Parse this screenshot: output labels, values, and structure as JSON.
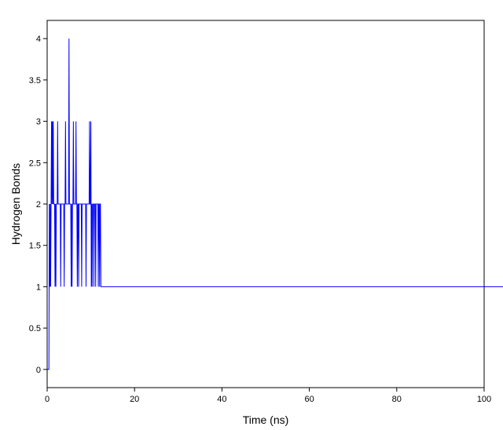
{
  "chart_data": {
    "type": "line",
    "title": "",
    "xlabel": "Time (ns)",
    "ylabel": "Hydrogen Bonds",
    "xlim": [
      0,
      100
    ],
    "ylim": [
      -0.22,
      4.22
    ],
    "x_ticks": [
      "0",
      "20",
      "40",
      "60",
      "80",
      "100"
    ],
    "y_ticks": [
      "0",
      "0.5",
      "1",
      "1.5",
      "2",
      "2.5",
      "3",
      "3.5",
      "4"
    ],
    "grid": false,
    "legend": "none",
    "line_color": "#0000ff",
    "sampling_interval_ns": 0.1,
    "series": [
      {
        "x_start": 0,
        "x_step": 0.1,
        "values": [
          0,
          0,
          0,
          0,
          0,
          2,
          1,
          2,
          1,
          2,
          3,
          2,
          3,
          2,
          3,
          2,
          2,
          2,
          1,
          2,
          1,
          2,
          2,
          2,
          3,
          2,
          2,
          2,
          2,
          2,
          2,
          1,
          2,
          2,
          2,
          2,
          2,
          2,
          2,
          1,
          2,
          2,
          3,
          2,
          2,
          2,
          2,
          2,
          2,
          2,
          4,
          2,
          2,
          2,
          2,
          1,
          2,
          1,
          2,
          2,
          3,
          2,
          2,
          2,
          2,
          2,
          3,
          2,
          2,
          1,
          2,
          2,
          1,
          2,
          2,
          2,
          2,
          2,
          2,
          1,
          2,
          2,
          2,
          2,
          2,
          2,
          2,
          2,
          2,
          1,
          2,
          2,
          2,
          2,
          2,
          2,
          2,
          3,
          2,
          2,
          3,
          1,
          2,
          1,
          2,
          2,
          2,
          1,
          2,
          2,
          2,
          1,
          2,
          2,
          2,
          2,
          2,
          1,
          2,
          2,
          1,
          2,
          2,
          1,
          1,
          1,
          1,
          1,
          1,
          1,
          1,
          1,
          1,
          1,
          1,
          1,
          1,
          1,
          1,
          1,
          1,
          1,
          1,
          1,
          1,
          1,
          1,
          1,
          1,
          1,
          1,
          1,
          1,
          1,
          1,
          1,
          1,
          1,
          1,
          1,
          1,
          1,
          1,
          1,
          1,
          1,
          1,
          1,
          1,
          1,
          1,
          1,
          1,
          1,
          1,
          1,
          1,
          1,
          1,
          1,
          1,
          1,
          1,
          1,
          1,
          1,
          1,
          1,
          1,
          1,
          1,
          1,
          1,
          1,
          1,
          1,
          1,
          1,
          1,
          1,
          1,
          1,
          1,
          1,
          1,
          1,
          1,
          1,
          1,
          1,
          1,
          1,
          1,
          1,
          1,
          1,
          1,
          1,
          1,
          1,
          1,
          1,
          1,
          1,
          1,
          1,
          1,
          1,
          1,
          1,
          1,
          1,
          1,
          1,
          1,
          1,
          1,
          1,
          1,
          1,
          1,
          1,
          1,
          1,
          1,
          1,
          1,
          1,
          1,
          1,
          1,
          1,
          1,
          1,
          1,
          1,
          1,
          1,
          1,
          1,
          1,
          1,
          1,
          1,
          1,
          1,
          1,
          1,
          1,
          1,
          1,
          1,
          1,
          1,
          1,
          1,
          1,
          1,
          1,
          1,
          1,
          1,
          1,
          1,
          1,
          1,
          1,
          1,
          1,
          1,
          1,
          1,
          1,
          1,
          1,
          1,
          1,
          1,
          1,
          1,
          1,
          1,
          1,
          1,
          1,
          1,
          1,
          1,
          1,
          1,
          1,
          1,
          1,
          1,
          1,
          1,
          1,
          1,
          1,
          1,
          1,
          1,
          1,
          1,
          1,
          1,
          1,
          1,
          1,
          1,
          1,
          1,
          1,
          1,
          1,
          1,
          1,
          1,
          1,
          1,
          1,
          1,
          1,
          1,
          1,
          1,
          1,
          1,
          1,
          1,
          1,
          1,
          1,
          1,
          1,
          1,
          1,
          1,
          1,
          1,
          1,
          1,
          1,
          1,
          1,
          1,
          1,
          1,
          1,
          1,
          1,
          1,
          1,
          1,
          1,
          1,
          1,
          1,
          1,
          1,
          1,
          1,
          1,
          1,
          1,
          1,
          1,
          1,
          1,
          1,
          1,
          1,
          1,
          1,
          1,
          1,
          1,
          1,
          1,
          1,
          1,
          1,
          1,
          1,
          1,
          1,
          1,
          1,
          1,
          1,
          1,
          1,
          1,
          1,
          1,
          1,
          1,
          1,
          1,
          1,
          1,
          1,
          1,
          1,
          1,
          1,
          1,
          1,
          1,
          1,
          1,
          1,
          1,
          1,
          1,
          1,
          1,
          1,
          1,
          1,
          1,
          1,
          1,
          1,
          1,
          1,
          1,
          1,
          1,
          1,
          1,
          1,
          1,
          1,
          1,
          1,
          1,
          1,
          1,
          1,
          1,
          1,
          1,
          1,
          1,
          1,
          1,
          1,
          1,
          1,
          1,
          1,
          1,
          1,
          1,
          1,
          1,
          1,
          1,
          1,
          1,
          1,
          1,
          1,
          1,
          1,
          1,
          1,
          1,
          1,
          1,
          1,
          1,
          1,
          1,
          1,
          1,
          1,
          1,
          1,
          1,
          1,
          1,
          1,
          1,
          1,
          1,
          1,
          1,
          1,
          1,
          1,
          1,
          1,
          1,
          1,
          1,
          1,
          1,
          1,
          1,
          1,
          1,
          1,
          1,
          1,
          1,
          1,
          1,
          1,
          1,
          1,
          1,
          1,
          1,
          1,
          1,
          1,
          1,
          1,
          1,
          1,
          1,
          1,
          1,
          1,
          1,
          1,
          1,
          1,
          1,
          1,
          1,
          1,
          1,
          1,
          1,
          1,
          1,
          1,
          1,
          1,
          1,
          1,
          1,
          1,
          1,
          1,
          1,
          1,
          1,
          1,
          1,
          1,
          1,
          1,
          1,
          1,
          1,
          1,
          1,
          1,
          1,
          1,
          1,
          1,
          1,
          1,
          1,
          1,
          1,
          1,
          1,
          1,
          1,
          1,
          1,
          1,
          1,
          1,
          1,
          1,
          1,
          1,
          1,
          1,
          1,
          1,
          1,
          1,
          1,
          1,
          1,
          1,
          1,
          1,
          1,
          1,
          1,
          1,
          1,
          1,
          1,
          1,
          1,
          1,
          1,
          1,
          1,
          1,
          1,
          1,
          1,
          1,
          1,
          1,
          1,
          1,
          1,
          1,
          1,
          1,
          1,
          1,
          1,
          1,
          1,
          1,
          1,
          1,
          1,
          1,
          1,
          1,
          1,
          1,
          1,
          1,
          1,
          1,
          1,
          1,
          1,
          1,
          1,
          1,
          1,
          1,
          1,
          1,
          1,
          1,
          1,
          1,
          1,
          1,
          1,
          1,
          1,
          1,
          1,
          1,
          1,
          1,
          1,
          1,
          1,
          1,
          1,
          1,
          1,
          1,
          1,
          1,
          1,
          1,
          1,
          1,
          1,
          1,
          1,
          1,
          1,
          1,
          1,
          1,
          1,
          1,
          1,
          1,
          1,
          1,
          1,
          1,
          1,
          1,
          1,
          1,
          1,
          1,
          1,
          1,
          1,
          1,
          1,
          1,
          1,
          1,
          1,
          1,
          1,
          1,
          1,
          1,
          1,
          1,
          1,
          1,
          1,
          1,
          1,
          1,
          1,
          1,
          1,
          1,
          1,
          1,
          1,
          1,
          1,
          1,
          1,
          1,
          1,
          1,
          1,
          1,
          1,
          1,
          1,
          1,
          1,
          1,
          1,
          1,
          1,
          1,
          1,
          1,
          1,
          1,
          1,
          1,
          1,
          1,
          1,
          1,
          1,
          1,
          1,
          1,
          1,
          1,
          1,
          1,
          1,
          1,
          1,
          1,
          1,
          1,
          1,
          1,
          1,
          1,
          1,
          1,
          1,
          1,
          1,
          1,
          1,
          1,
          1,
          1,
          1,
          1,
          1,
          1,
          1,
          1,
          1,
          1,
          1,
          1,
          1,
          1,
          1,
          1,
          1,
          1,
          1,
          1,
          1,
          1,
          1,
          1,
          1,
          1,
          1,
          1,
          1,
          1,
          1,
          1,
          1,
          1,
          1,
          1,
          1,
          1,
          1,
          1,
          1,
          1,
          1,
          1,
          1,
          1,
          1,
          1,
          1,
          1,
          1,
          1,
          1,
          1,
          1,
          1,
          1,
          1,
          1,
          1,
          1,
          1,
          1,
          1,
          1,
          1,
          1,
          1,
          1,
          1,
          1,
          1,
          1,
          1,
          1,
          1,
          1,
          1,
          1,
          1,
          1,
          1,
          1,
          1,
          1,
          1,
          1,
          1,
          1,
          1,
          1,
          1,
          1,
          1,
          1,
          1,
          1,
          1,
          1,
          1,
          1,
          1,
          1,
          1,
          1,
          1,
          1,
          1,
          1,
          1,
          1,
          1,
          1,
          1,
          1,
          1,
          1,
          1,
          1,
          1,
          1,
          1,
          1,
          1,
          1,
          1,
          1,
          1,
          1,
          1,
          1,
          1,
          1,
          1,
          1,
          1,
          1,
          1,
          1,
          1,
          1,
          1,
          1,
          1,
          1,
          1,
          1,
          1,
          1,
          1,
          1,
          1,
          1,
          1,
          1,
          1,
          1,
          1,
          1,
          1,
          1,
          1,
          1,
          1,
          1,
          1,
          1,
          1,
          1,
          1,
          1,
          1,
          1,
          1,
          1,
          1,
          1,
          1,
          1,
          1,
          1,
          1,
          1,
          1,
          1,
          1,
          1,
          1,
          1,
          1,
          1,
          1,
          1,
          1,
          1,
          1,
          1,
          1,
          1,
          1,
          1,
          1,
          1,
          1,
          1,
          1,
          1,
          1,
          1,
          1,
          1,
          1,
          1,
          1,
          1,
          1,
          1,
          1,
          1,
          1,
          1,
          1,
          1,
          1,
          1,
          1,
          1,
          1,
          1,
          1,
          1,
          1,
          1,
          1,
          1,
          1,
          1,
          1,
          1,
          1,
          1,
          1,
          1,
          1,
          1,
          1,
          1,
          1,
          1,
          1,
          1,
          1,
          1,
          1,
          1,
          1,
          1,
          1,
          1,
          1,
          1,
          1,
          1,
          1,
          1,
          1,
          1,
          1,
          1,
          1,
          1,
          1,
          1,
          1,
          1,
          1,
          1,
          1,
          1,
          1,
          1,
          1,
          1,
          1,
          1,
          1,
          1,
          1,
          1,
          1,
          1,
          1,
          1
        ]
      }
    ]
  }
}
